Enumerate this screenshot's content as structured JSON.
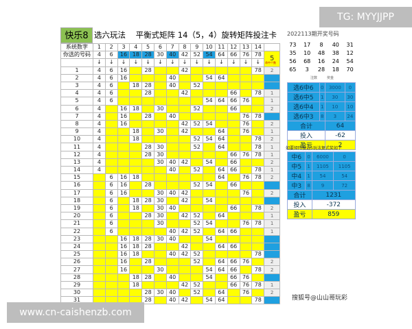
{
  "title": {
    "logo": "快乐8",
    "mode": "选六玩法",
    "name": "平衡式矩阵 14（5，4）旋转矩阵投注卡"
  },
  "header": {
    "sys_label": "系统数字",
    "pick_label": "你选的号码",
    "sys_nums": [
      1,
      2,
      3,
      4,
      5,
      6,
      7,
      8,
      9,
      10,
      11,
      12,
      13,
      14
    ],
    "picks": [
      4,
      6,
      16,
      18,
      28,
      30,
      40,
      42,
      52,
      54,
      64,
      66,
      76,
      78
    ],
    "hit_numbers": [
      16,
      18,
      28,
      40,
      54
    ],
    "total_hits": "5",
    "hits_label": "命中个数",
    "arrow": "↓"
  },
  "rows": [
    [
      4,
      6,
      16,
      28,
      42,
      78
    ],
    [
      4,
      6,
      16,
      40,
      54,
      64
    ],
    [
      4,
      6,
      18,
      28,
      40,
      52
    ],
    [
      4,
      6,
      28,
      42,
      66,
      78
    ],
    [
      4,
      6,
      54,
      64,
      66,
      76
    ],
    [
      4,
      16,
      18,
      30,
      52,
      66
    ],
    [
      4,
      16,
      28,
      40,
      76,
      78
    ],
    [
      4,
      16,
      42,
      52,
      54,
      76
    ],
    [
      4,
      18,
      30,
      42,
      64,
      76
    ],
    [
      4,
      18,
      52,
      54,
      64,
      78
    ],
    [
      4,
      28,
      30,
      52,
      64,
      78
    ],
    [
      4,
      28,
      30,
      66,
      76,
      78
    ],
    [
      4,
      30,
      40,
      42,
      54,
      66
    ],
    [
      4,
      40,
      52,
      64,
      66,
      78
    ],
    [
      6,
      16,
      18,
      64,
      76,
      78
    ],
    [
      6,
      16,
      28,
      52,
      54,
      66
    ],
    [
      6,
      16,
      30,
      40,
      42,
      76
    ],
    [
      6,
      18,
      28,
      30,
      42,
      54
    ],
    [
      6,
      18,
      30,
      40,
      66,
      78
    ],
    [
      6,
      28,
      30,
      42,
      52,
      64
    ],
    [
      6,
      30,
      52,
      54,
      76,
      78
    ],
    [
      6,
      40,
      42,
      52,
      64,
      66
    ],
    [
      16,
      18,
      28,
      30,
      40,
      54
    ],
    [
      16,
      18,
      28,
      42,
      64,
      66
    ],
    [
      16,
      18,
      40,
      42,
      52,
      78
    ],
    [
      16,
      28,
      52,
      64,
      66,
      76
    ],
    [
      16,
      30,
      54,
      64,
      66,
      78
    ],
    [
      18,
      28,
      40,
      54,
      66,
      76
    ],
    [
      18,
      42,
      52,
      66,
      76,
      78
    ],
    [
      28,
      30,
      40,
      52,
      64,
      76
    ],
    [
      28,
      40,
      42,
      54,
      64,
      78
    ]
  ],
  "hits": [
    2,
    3,
    3,
    1,
    1,
    2,
    3,
    2,
    1,
    2,
    1,
    1,
    2,
    1,
    2,
    3,
    2,
    3,
    2,
    1,
    1,
    1,
    5,
    3,
    3,
    2,
    2,
    4,
    1,
    2,
    3
  ],
  "draw": {
    "period": "2022113期开奖号码",
    "numbers": [
      [
        73,
        17,
        8,
        40,
        31
      ],
      [
        35,
        10,
        48,
        38,
        12
      ],
      [
        56,
        68,
        16,
        24,
        54
      ],
      [
        65,
        3,
        28,
        18,
        70
      ]
    ]
  },
  "prize1": {
    "col_count": "注数",
    "col_prize": "奖金",
    "rows": [
      [
        "选6中6",
        "0",
        "3000",
        "0"
      ],
      [
        "选6中5",
        "1",
        "30",
        "30"
      ],
      [
        "选6中4",
        "1",
        "10",
        "10"
      ],
      [
        "选6中3",
        "8",
        "3",
        "24"
      ]
    ],
    "total_label": "合计",
    "total": "64",
    "cost_label": "投入",
    "cost": "-62",
    "profit_label": "盈亏",
    "profit": "2"
  },
  "prize2": {
    "heading": "如要矩阵投选5玩法复式奖如下",
    "rows": [
      [
        "中6",
        "0",
        "6000",
        "0"
      ],
      [
        "中5",
        "1",
        "1105",
        "1105"
      ],
      [
        "中4",
        "1",
        "54",
        "54"
      ],
      [
        "中3",
        "8",
        "9",
        "72"
      ]
    ],
    "total_label": "合计",
    "total": "1231",
    "cost_label": "投入",
    "cost": "-372",
    "profit_label": "盈亏",
    "profit": "859"
  },
  "footer_credit": "搜狐号@山山哥玩彩",
  "watermarks": {
    "top": "TG: MYYJJPP",
    "bottom": "www.cn-caishenzb.com"
  },
  "colors": {
    "yellow": "#ffff00",
    "blue": "#1fa0e0",
    "green": "#8cc152"
  }
}
